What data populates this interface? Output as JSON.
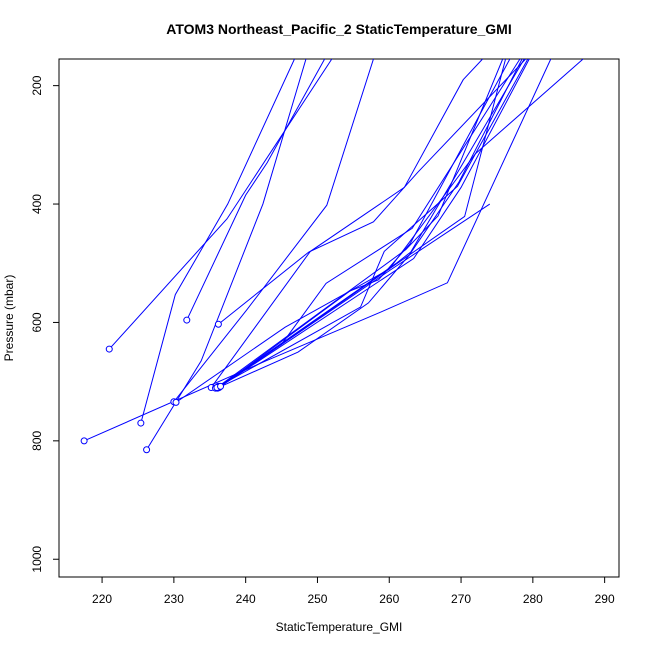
{
  "chart_data": {
    "type": "line",
    "title": "ATOM3 Northeast_Pacific_2 StaticTemperature_GMI",
    "xlabel": "StaticTemperature_GMI",
    "ylabel": "Pressure (mbar)",
    "xlim": [
      214,
      292
    ],
    "ylim": [
      1030,
      155
    ],
    "y_reversed": true,
    "grid": false,
    "x_ticks": [
      220,
      230,
      240,
      250,
      260,
      270,
      280,
      290
    ],
    "y_ticks": [
      200,
      400,
      600,
      800,
      1000
    ],
    "series_color": "#0000ff",
    "marker": "open-circle",
    "series": [
      {
        "values": [
          [
            221.0,
            645
          ],
          [
            237.4,
            425
          ],
          [
            252.0,
            155
          ]
        ]
      },
      {
        "values": [
          [
            217.5,
            800
          ],
          [
            242.8,
            665
          ],
          [
            258.9,
            582
          ],
          [
            268.1,
            533
          ],
          [
            282.5,
            155
          ]
        ]
      },
      {
        "values": [
          [
            226.2,
            815
          ],
          [
            233.8,
            665
          ],
          [
            242.4,
            400
          ],
          [
            248.4,
            155
          ]
        ]
      },
      {
        "values": [
          [
            225.4,
            770
          ],
          [
            230.2,
            553
          ],
          [
            237.5,
            400
          ],
          [
            246.8,
            155
          ]
        ]
      },
      {
        "values": [
          [
            230.0,
            734
          ],
          [
            240.2,
            578
          ],
          [
            251.3,
            402
          ],
          [
            257.8,
            155
          ]
        ]
      },
      {
        "values": [
          [
            231.8,
            596
          ],
          [
            240.0,
            385
          ],
          [
            243.0,
            330
          ],
          [
            251.0,
            155
          ]
        ]
      },
      {
        "values": [
          [
            235.2,
            710
          ],
          [
            249.0,
            480
          ],
          [
            262.1,
            372
          ],
          [
            270.3,
            190
          ],
          [
            273.0,
            155
          ]
        ]
      },
      {
        "values": [
          [
            236.0,
            711
          ],
          [
            247.3,
            650
          ],
          [
            257.1,
            567
          ],
          [
            262.8,
            486
          ],
          [
            269.7,
            363
          ],
          [
            278.5,
            155
          ]
        ]
      },
      {
        "values": [
          [
            236.2,
            708
          ],
          [
            245.0,
            637
          ],
          [
            251.2,
            534
          ],
          [
            263.2,
            441
          ],
          [
            278.2,
            155
          ]
        ]
      },
      {
        "values": [
          [
            236.2,
            603
          ],
          [
            248.8,
            481
          ],
          [
            257.8,
            430
          ],
          [
            264.0,
            346
          ],
          [
            279.0,
            155
          ]
        ]
      },
      {
        "values": [
          [
            236.4,
            708
          ],
          [
            261.1,
            499
          ],
          [
            263.0,
            481
          ],
          [
            278.8,
            155
          ]
        ]
      },
      {
        "values": [
          [
            235.8,
            711
          ],
          [
            256.0,
            574
          ],
          [
            259.3,
            480
          ],
          [
            269.5,
            370
          ],
          [
            279.3,
            155
          ]
        ]
      },
      {
        "values": [
          [
            236.3,
            710
          ],
          [
            254.5,
            547
          ],
          [
            258.5,
            528
          ],
          [
            262.9,
            467
          ],
          [
            276.8,
            155
          ]
        ]
      },
      {
        "values": [
          [
            236.1,
            711
          ],
          [
            263.4,
            492
          ],
          [
            270.0,
            372
          ],
          [
            279.5,
            155
          ]
        ]
      },
      {
        "values": [
          [
            236.2,
            710
          ],
          [
            260.2,
            511
          ],
          [
            274.0,
            400
          ]
        ]
      },
      {
        "values": [
          [
            230.3,
            735
          ],
          [
            245.5,
            608
          ],
          [
            260.0,
            510
          ],
          [
            272.0,
            315
          ],
          [
            287.0,
            155
          ]
        ]
      },
      {
        "values": [
          [
            236.0,
            710
          ],
          [
            262.3,
            477
          ],
          [
            266.8,
            420
          ],
          [
            275.8,
            155
          ]
        ]
      },
      {
        "values": [
          [
            236.5,
            708
          ],
          [
            270.5,
            421
          ],
          [
            276.2,
            155
          ]
        ]
      }
    ]
  }
}
